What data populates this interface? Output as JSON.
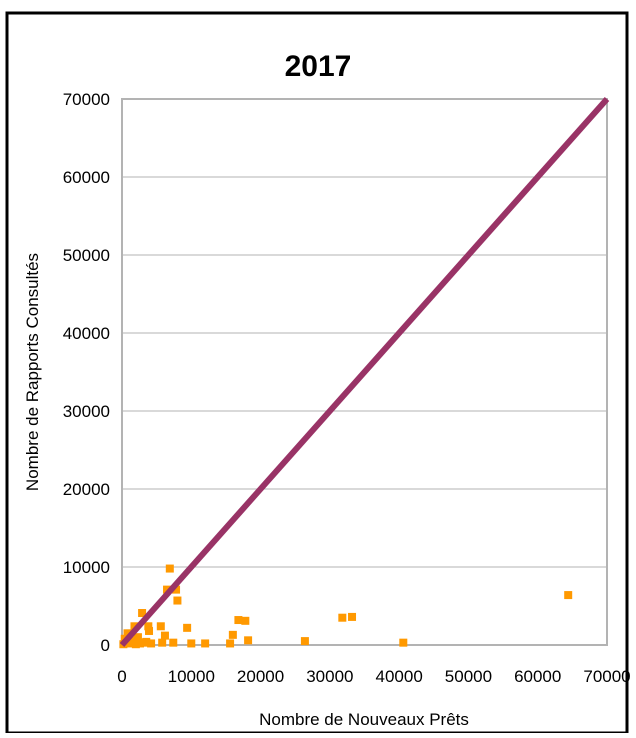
{
  "chart_data": {
    "type": "scatter",
    "title": "2017",
    "xlabel": "Nombre de Nouveaux Prêts",
    "ylabel": "Nombre de Rapports Consultés",
    "xlim": [
      0,
      70000
    ],
    "ylim": [
      0,
      70000
    ],
    "x_ticks": [
      "0",
      "10000",
      "20000",
      "30000",
      "40000",
      "50000",
      "60000",
      "70000"
    ],
    "y_ticks": [
      "0",
      "10000",
      "20000",
      "30000",
      "40000",
      "50000",
      "60000",
      "70000"
    ],
    "grid": "horizontal",
    "legend": "none",
    "marker": "square",
    "series": [
      {
        "points": [
          [
            200,
            100
          ],
          [
            400,
            800
          ],
          [
            600,
            300
          ],
          [
            800,
            1500
          ],
          [
            1000,
            200
          ],
          [
            1200,
            600
          ],
          [
            1500,
            300
          ],
          [
            1800,
            2400
          ],
          [
            2000,
            100
          ],
          [
            2300,
            1000
          ],
          [
            2600,
            200
          ],
          [
            2900,
            4100
          ],
          [
            3200,
            300
          ],
          [
            3500,
            400
          ],
          [
            3800,
            2400
          ],
          [
            3900,
            1800
          ],
          [
            4200,
            200
          ],
          [
            5600,
            2400
          ],
          [
            5800,
            300
          ],
          [
            6200,
            1200
          ],
          [
            6500,
            7100
          ],
          [
            6900,
            9800
          ],
          [
            7400,
            300
          ],
          [
            7800,
            7100
          ],
          [
            8000,
            5700
          ],
          [
            9400,
            2200
          ],
          [
            10000,
            200
          ],
          [
            12000,
            200
          ],
          [
            15600,
            200
          ],
          [
            16000,
            1300
          ],
          [
            16800,
            3200
          ],
          [
            17800,
            3100
          ],
          [
            18200,
            600
          ],
          [
            26400,
            500
          ],
          [
            31800,
            3500
          ],
          [
            33200,
            3600
          ],
          [
            40600,
            300
          ],
          [
            64400,
            6400
          ]
        ]
      }
    ],
    "reference_line": [
      [
        0,
        0
      ],
      [
        70000,
        70000
      ]
    ],
    "colors": {
      "points": "#ff9900",
      "line": "#993366",
      "grid": "#b3b3b3",
      "frame": "#000000"
    }
  }
}
